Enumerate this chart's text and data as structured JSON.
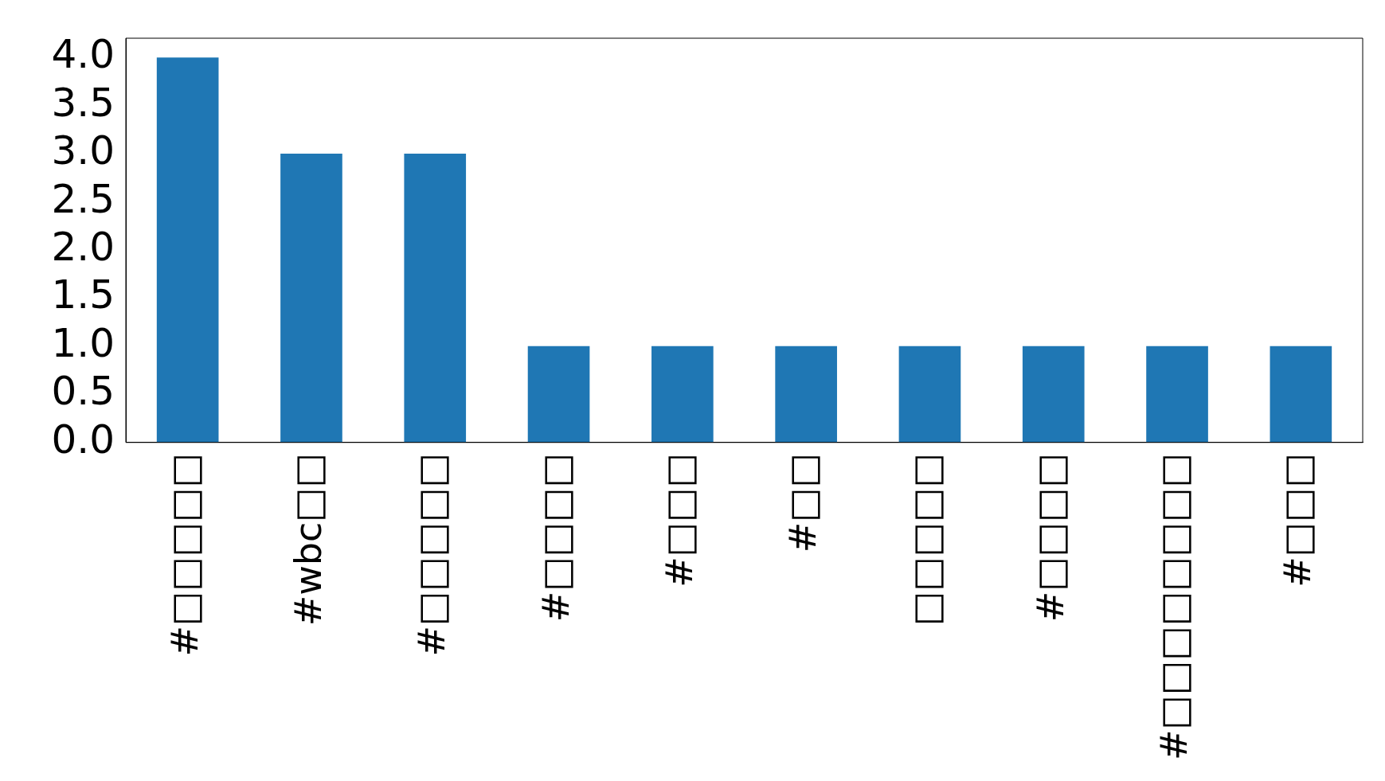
{
  "chart_data": {
    "type": "bar",
    "categories": [
      "#□□□□□",
      "#wbc□□",
      "#□□□□□",
      "#□□□□",
      "#□□□",
      "#□□",
      "□□□□□",
      "#□□□□",
      "#□□□□□□□□",
      "#□□□"
    ],
    "values": [
      4,
      3,
      3,
      1,
      1,
      1,
      1,
      1,
      1,
      1
    ],
    "color": "#1f77b4",
    "ylim": [
      0,
      4.2
    ],
    "yticks": [
      {
        "value": 0,
        "label": "0.0"
      },
      {
        "value": 0.5,
        "label": "0.5"
      },
      {
        "value": 1,
        "label": "1.0"
      },
      {
        "value": 1.5,
        "label": "1.5"
      },
      {
        "value": 2,
        "label": "2.0"
      },
      {
        "value": 2.5,
        "label": "2.5"
      },
      {
        "value": 3,
        "label": "3.0"
      },
      {
        "value": 3.5,
        "label": "3.5"
      },
      {
        "value": 4,
        "label": "4.0"
      }
    ],
    "grid": false,
    "legend": false
  }
}
